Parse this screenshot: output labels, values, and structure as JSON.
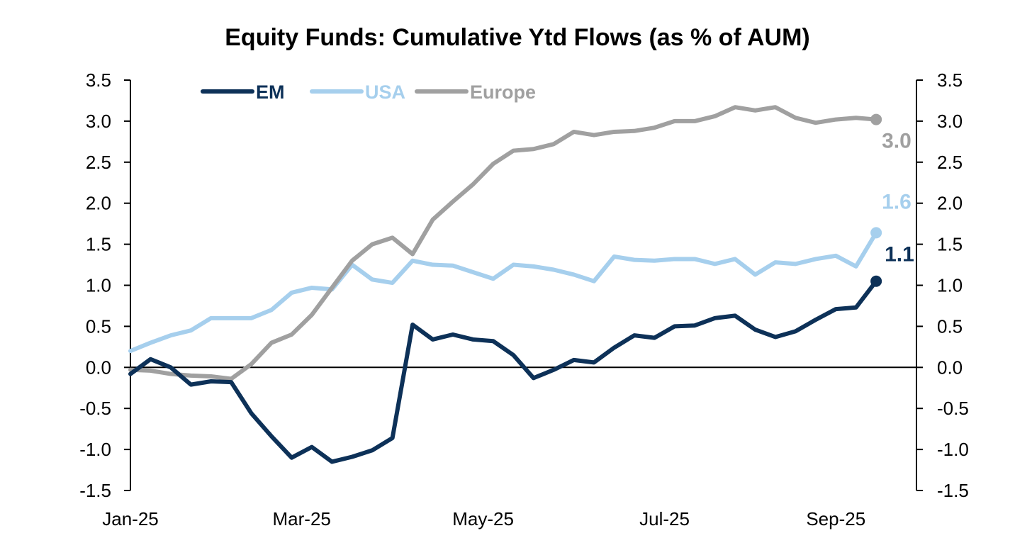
{
  "chart_data": {
    "type": "line",
    "title": "Equity Funds: Cumulative Ytd Flows (as % of AUM)",
    "xlabel": "",
    "ylabel": "",
    "x_tick_labels": [
      "Jan-25",
      "Mar-25",
      "May-25",
      "Jul-25",
      "Sep-25"
    ],
    "x_tick_weeks": [
      0,
      8.5,
      17.5,
      26.5,
      35
    ],
    "x_range": [
      0,
      39
    ],
    "ylim": [
      -1.5,
      3.5
    ],
    "y_ticks": [
      "-1.5",
      "-1.0",
      "-0.5",
      "0.0",
      "0.5",
      "1.0",
      "1.5",
      "2.0",
      "2.5",
      "3.0",
      "3.5"
    ],
    "y_tick_values": [
      -1.5,
      -1.0,
      -0.5,
      0.0,
      0.5,
      1.0,
      1.5,
      2.0,
      2.5,
      3.0,
      3.5
    ],
    "secondary_axis": "right (same scale)",
    "grid": false,
    "zero_line": true,
    "legend_position": "top-left",
    "series": [
      {
        "name": "EM",
        "color": "#0d3158",
        "end_label": "1.1",
        "values": [
          -0.08,
          0.1,
          0.0,
          -0.21,
          -0.17,
          -0.18,
          -0.56,
          -0.84,
          -1.1,
          -0.97,
          -1.15,
          -1.09,
          -1.01,
          -0.86,
          0.52,
          0.34,
          0.4,
          0.34,
          0.32,
          0.15,
          -0.13,
          -0.03,
          0.09,
          0.06,
          0.24,
          0.39,
          0.36,
          0.5,
          0.51,
          0.6,
          0.63,
          0.46,
          0.37,
          0.44,
          0.58,
          0.71,
          0.73,
          1.05
        ]
      },
      {
        "name": "USA",
        "color": "#a6cfed",
        "end_label": "1.6",
        "values": [
          0.2,
          0.3,
          0.39,
          0.45,
          0.6,
          0.6,
          0.6,
          0.7,
          0.91,
          0.97,
          0.95,
          1.25,
          1.07,
          1.03,
          1.3,
          1.25,
          1.24,
          1.16,
          1.08,
          1.25,
          1.23,
          1.19,
          1.13,
          1.05,
          1.35,
          1.31,
          1.3,
          1.32,
          1.32,
          1.26,
          1.32,
          1.13,
          1.28,
          1.26,
          1.32,
          1.36,
          1.23,
          1.64
        ]
      },
      {
        "name": "Europe",
        "color": "#a0a0a0",
        "end_label": "3.0",
        "values": [
          -0.03,
          -0.04,
          -0.08,
          -0.1,
          -0.11,
          -0.14,
          0.04,
          0.3,
          0.4,
          0.64,
          0.97,
          1.3,
          1.5,
          1.58,
          1.38,
          1.8,
          2.02,
          2.23,
          2.48,
          2.64,
          2.66,
          2.72,
          2.87,
          2.83,
          2.87,
          2.88,
          2.92,
          3.0,
          3.0,
          3.06,
          3.17,
          3.13,
          3.17,
          3.04,
          2.98,
          3.02,
          3.04,
          3.02
        ]
      }
    ]
  }
}
